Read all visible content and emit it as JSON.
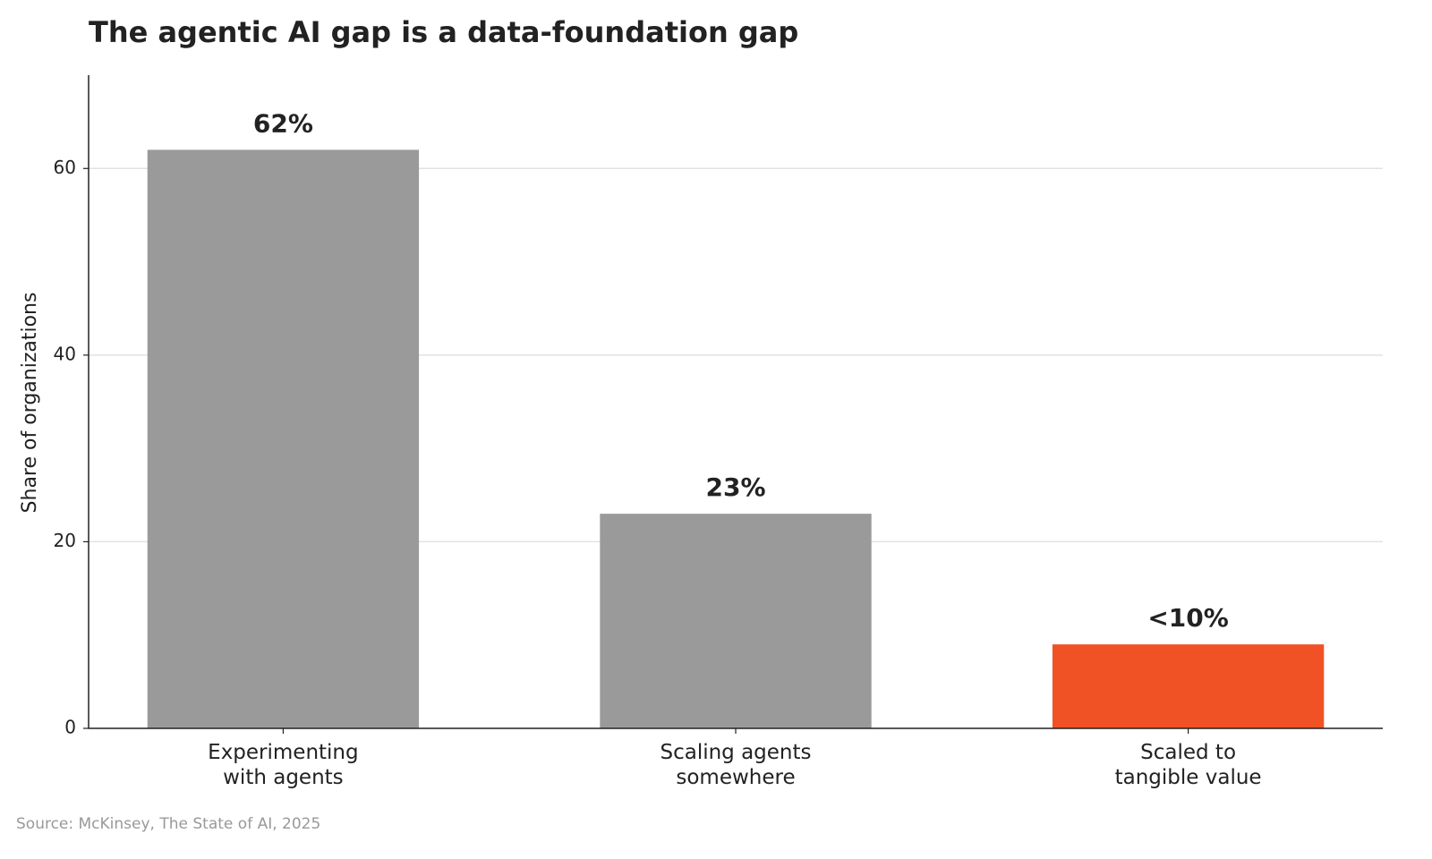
{
  "chart_data": {
    "type": "bar",
    "title": "The agentic AI gap is a data-foundation gap",
    "y_label": "Share of organizations",
    "source": "Source: McKinsey, The State of AI, 2025",
    "categories": [
      "Experimenting\nwith agents",
      "Scaling agents\nsomewhere",
      "Scaled to\ntangible value"
    ],
    "values": [
      62,
      23,
      9
    ],
    "value_labels": [
      "62%",
      "23%",
      "<10%"
    ],
    "colors": [
      "#9a9a9a",
      "#9a9a9a",
      "#f05225"
    ],
    "ylim": [
      0,
      70
    ],
    "yticks": [
      0,
      20,
      40,
      60
    ],
    "grid": true
  }
}
